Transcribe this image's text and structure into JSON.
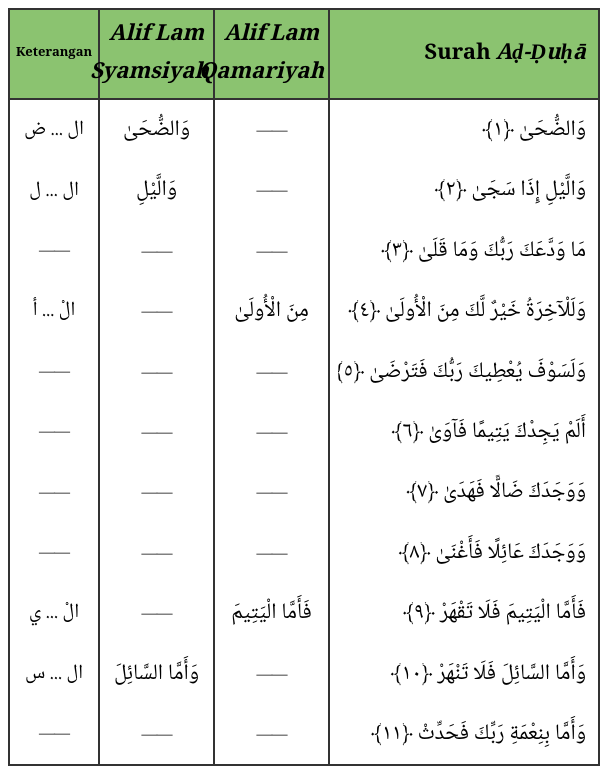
{
  "table": {
    "header_bg": "#8bc370",
    "border_color": "#333333",
    "headers": {
      "keterangan": "Keterangan",
      "syamsiyah": "Alif Lam Syamsiyah",
      "qamariyah": "Alif Lam Qamariyah",
      "surah": "Surah Aḍ-Ḍuḥā"
    },
    "col_widths": {
      "keterangan": 90,
      "syamsiyah": 115,
      "qamariyah": 115
    },
    "dash": "——",
    "rows": [
      {
        "keterangan": "ال ... ض",
        "syamsiyah": "وَالضُّحَىٰ",
        "qamariyah": "__dash__",
        "surah": "وَالضُّحَىٰ ﴿١﴾"
      },
      {
        "keterangan": "ال ... ل",
        "syamsiyah": "وَالَّيْلِ",
        "qamariyah": "__dash__",
        "surah": "وَالَّيْلِ إِذَا سَجَىٰ ﴿٢﴾"
      },
      {
        "keterangan": "__dash__",
        "syamsiyah": "__dash__",
        "qamariyah": "__dash__",
        "surah": "مَا وَدَّعَكَ رَبُّكَ وَمَا قَلَىٰ ﴿٣﴾"
      },
      {
        "keterangan": "الْ ... أ",
        "syamsiyah": "__dash__",
        "qamariyah": "مِنَ الْأُولَىٰ",
        "surah": "وَلَلْآخِرَةُ خَيْرٌ لَّكَ مِنَ الْأُولَىٰ ﴿٤﴾"
      },
      {
        "keterangan": "__dash__",
        "syamsiyah": "__dash__",
        "qamariyah": "__dash__",
        "surah": "وَلَسَوْفَ يُعْطِيكَ رَبُّكَ فَتَرْضَىٰ ﴿٥﴾"
      },
      {
        "keterangan": "__dash__",
        "syamsiyah": "__dash__",
        "qamariyah": "__dash__",
        "surah": "أَلَمْ يَجِدْكَ يَتِيمًا فَآوَىٰ ﴿٦﴾"
      },
      {
        "keterangan": "__dash__",
        "syamsiyah": "__dash__",
        "qamariyah": "__dash__",
        "surah": "وَوَجَدَكَ ضَالًّا فَهَدَىٰ ﴿٧﴾"
      },
      {
        "keterangan": "__dash__",
        "syamsiyah": "__dash__",
        "qamariyah": "__dash__",
        "surah": "وَوَجَدَكَ عَائِلًا فَأَغْنَىٰ ﴿٨﴾"
      },
      {
        "keterangan": "الْ ... ي",
        "syamsiyah": "__dash__",
        "qamariyah": "فَأَمَّا الْيَتِيمَ",
        "surah": "فَأَمَّا الْيَتِيمَ فَلَا تَقْهَرْ ﴿٩﴾"
      },
      {
        "keterangan": "ال ... س",
        "syamsiyah": "وَأَمَّا السَّائِلَ",
        "qamariyah": "__dash__",
        "surah": "وَأَمَّا السَّائِلَ فَلَا تَنْهَرْ ﴿١٠﴾"
      },
      {
        "keterangan": "__dash__",
        "syamsiyah": "__dash__",
        "qamariyah": "__dash__",
        "surah": "وَأَمَّا بِنِعْمَةِ رَبِّكَ فَحَدِّثْ ﴿١١﴾"
      }
    ]
  }
}
